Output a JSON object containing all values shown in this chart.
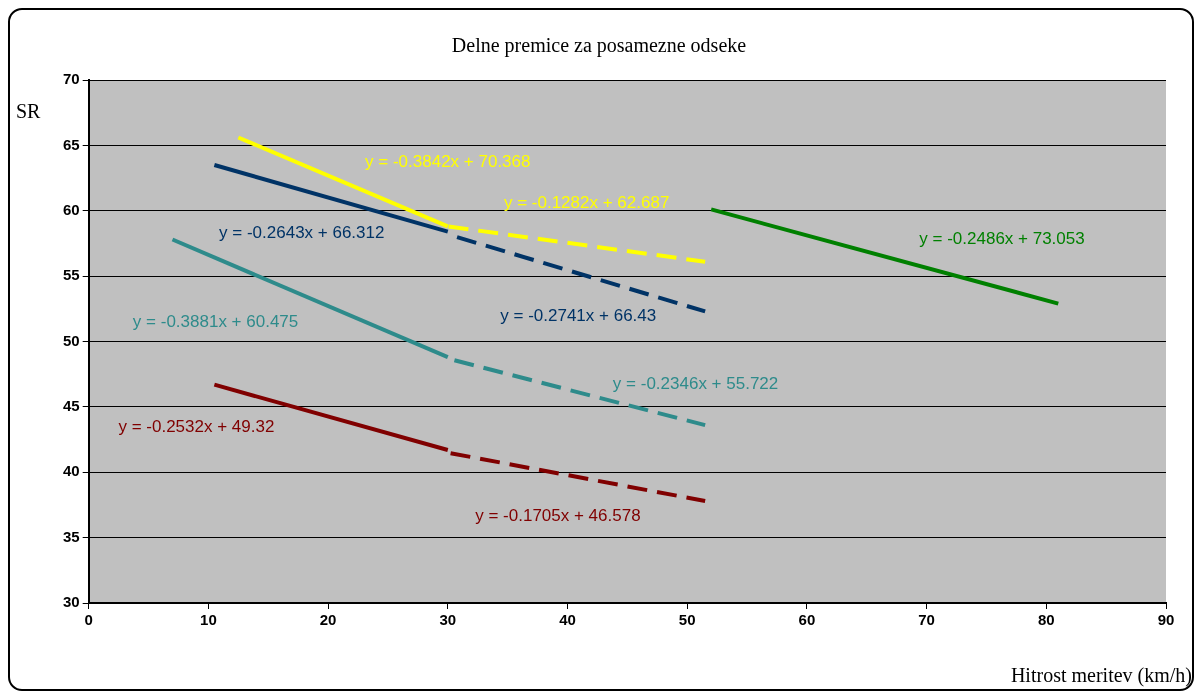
{
  "chart_data": {
    "type": "line",
    "title": "Delne premice za posamezne odseke",
    "xlabel": "Hitrost meritev (km/h)",
    "ylabel": "SR",
    "xlim": [
      0,
      90
    ],
    "xticks": [
      0,
      10,
      20,
      30,
      40,
      50,
      60,
      70,
      80,
      90
    ],
    "ylim": [
      30,
      70
    ],
    "yticks": [
      30,
      35,
      40,
      45,
      50,
      55,
      60,
      65,
      70
    ],
    "grid": "y",
    "legend": false,
    "marker": "none",
    "series": [
      {
        "color": "#ffff00",
        "line_style": "solid",
        "x": [
          12.5,
          30
        ],
        "values": [
          65.6,
          58.8
        ]
      },
      {
        "color": "#ffff00",
        "line_style": "dashed",
        "x": [
          30,
          51.5
        ],
        "values": [
          58.8,
          56.1
        ]
      },
      {
        "color": "#003366",
        "line_style": "solid",
        "x": [
          10.5,
          30
        ],
        "values": [
          63.5,
          58.4
        ]
      },
      {
        "color": "#003366",
        "line_style": "dashed",
        "x": [
          30,
          51.5
        ],
        "values": [
          58.2,
          52.3
        ]
      },
      {
        "color": "#2e8b8b",
        "line_style": "solid",
        "x": [
          7,
          30
        ],
        "values": [
          57.8,
          48.8
        ]
      },
      {
        "color": "#2e8b8b",
        "line_style": "dashed",
        "x": [
          30,
          51.5
        ],
        "values": [
          48.7,
          43.6
        ]
      },
      {
        "color": "#800000",
        "line_style": "solid",
        "x": [
          10.5,
          30
        ],
        "values": [
          46.7,
          41.7
        ]
      },
      {
        "color": "#800000",
        "line_style": "dashed",
        "x": [
          30,
          51.5
        ],
        "values": [
          41.5,
          37.8
        ]
      },
      {
        "color": "#008000",
        "line_style": "solid",
        "x": [
          52,
          81
        ],
        "values": [
          60.1,
          52.9
        ]
      }
    ],
    "annotations": [
      "y = -0.3842x + 70.368",
      "y = -0.1282x + 62.687",
      "y = -0.2643x + 66.312",
      "y = -0.2741x + 66.43",
      "y = -0.3881x + 60.475",
      "y = -0.2346x + 55.722",
      "y = -0.2532x + 49.32",
      "y = -0.1705x + 46.578",
      "y = -0.2486x + 73.053"
    ]
  }
}
